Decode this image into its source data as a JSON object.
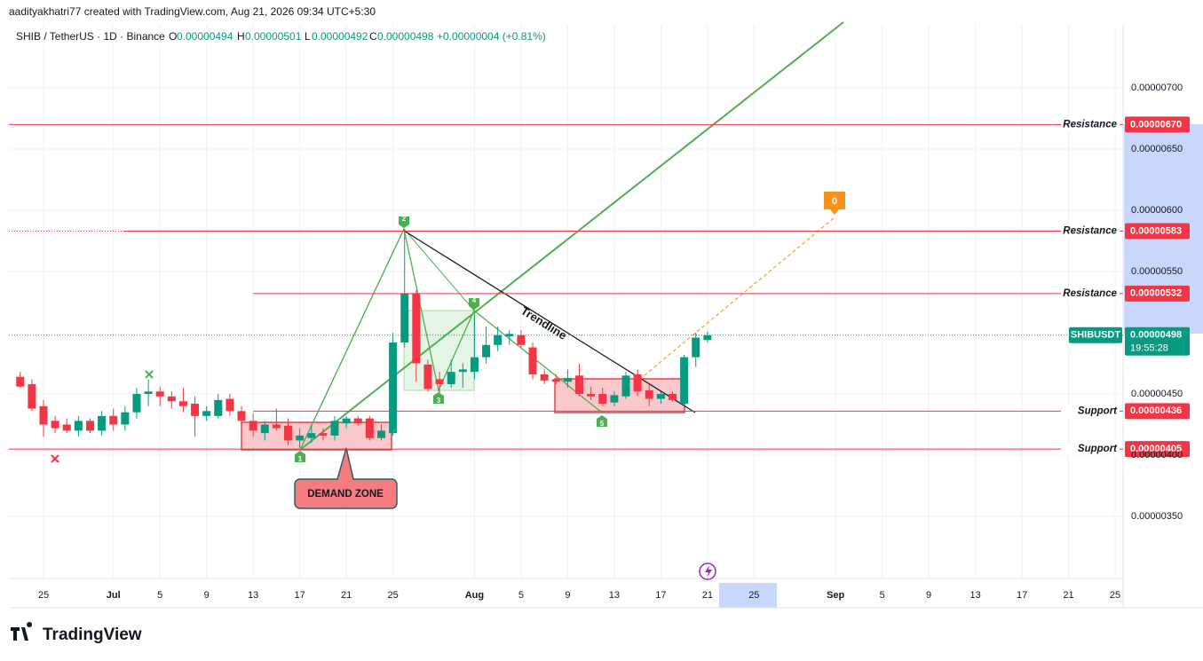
{
  "attribution": "aadityakhatri77 created with TradingView.com, Aug 21, 2026 09:34 UTC+5:30",
  "brand": "TradingView",
  "chart_data": {
    "type": "candlestick",
    "title": "SHIB / TetherUS · 1D · Binance",
    "ohlc_header": {
      "o_key": "O",
      "o": "0.00000494",
      "h_key": "H",
      "h": "0.00000501",
      "l_key": "L",
      "l": "0.00000492",
      "c_key": "C",
      "c": "0.00000498",
      "change": "+0.00000004 (+0.81%)"
    },
    "categories": [
      null,
      null,
      "25",
      null,
      null,
      null,
      null,
      null,
      "Jul",
      null,
      null,
      null,
      "5",
      null,
      null,
      null,
      "9",
      null,
      null,
      null,
      "13",
      null,
      null,
      null,
      "17",
      null,
      null,
      null,
      "21",
      null,
      null,
      null,
      "25",
      null,
      null,
      null,
      null,
      null,
      null,
      "Aug",
      null,
      null,
      null,
      "5",
      null,
      null,
      null,
      "9",
      null,
      null,
      null,
      "13",
      null,
      null,
      null,
      "17",
      null,
      null,
      null,
      "21",
      null,
      null,
      null,
      "25",
      null,
      null,
      null,
      null,
      null,
      null,
      "Sep",
      null,
      null,
      null,
      "5",
      null,
      null,
      null,
      "9",
      null,
      null,
      null,
      "13",
      null,
      null,
      null,
      "17",
      null,
      null,
      null,
      "21",
      null,
      null,
      null,
      "25"
    ],
    "open": [
      4.64e-06,
      4.58e-06,
      4.4e-06,
      4.28e-06,
      4.25e-06,
      4.2e-06,
      4.28e-06,
      4.2e-06,
      4.32e-06,
      4.25e-06,
      4.35e-06,
      4.5e-06,
      4.52e-06,
      4.48e-06,
      4.44e-06,
      4.42e-06,
      4.32e-06,
      4.32e-06,
      4.46e-06,
      4.36e-06,
      4.28e-06,
      4.18e-06,
      4.25e-06,
      4.24e-06,
      4.12e-06,
      4.14e-06,
      4.18e-06,
      4.16e-06,
      4.26e-06,
      4.3e-06,
      4.3e-06,
      4.14e-06,
      4.18e-06,
      4.92e-06,
      5.32e-06,
      4.74e-06,
      4.62e-06,
      4.58e-06,
      4.68e-06,
      4.68e-06,
      4.8e-06,
      4.9e-06,
      4.97e-06,
      4.98e-06,
      4.88e-06,
      4.66e-06,
      4.62e-06,
      4.6e-06,
      4.65e-06,
      4.5e-06,
      4.5e-06,
      4.43e-06,
      4.48e-06,
      4.66e-06,
      4.53e-06,
      4.46e-06,
      4.5e-06,
      4.42e-06,
      4.8e-06,
      4.94e-06,
      null,
      null,
      null,
      null,
      null,
      null,
      null,
      null,
      null,
      null,
      null,
      null,
      null,
      null,
      null,
      null,
      null,
      null,
      null,
      null,
      null,
      null,
      null,
      null,
      null,
      null,
      null,
      null,
      null,
      null,
      null,
      null,
      null,
      null,
      null
    ],
    "high": [
      4.68e-06,
      4.62e-06,
      4.45e-06,
      4.32e-06,
      4.3e-06,
      4.32e-06,
      4.3e-06,
      4.36e-06,
      4.38e-06,
      4.4e-06,
      4.55e-06,
      4.62e-06,
      4.56e-06,
      4.52e-06,
      4.55e-06,
      4.48e-06,
      4.4e-06,
      4.5e-06,
      4.5e-06,
      4.4e-06,
      4.34e-06,
      4.28e-06,
      4.38e-06,
      4.3e-06,
      4.22e-06,
      4.25e-06,
      4.22e-06,
      4.32e-06,
      4.32e-06,
      4.32e-06,
      4.32e-06,
      4.25e-06,
      5e-06,
      5.83e-06,
      5.35e-06,
      4.78e-06,
      4.68e-06,
      4.78e-06,
      4.75e-06,
      5.15e-06,
      5.05e-06,
      5.05e-06,
      5.02e-06,
      5.02e-06,
      4.92e-06,
      4.7e-06,
      4.66e-06,
      4.7e-06,
      4.75e-06,
      4.56e-06,
      4.55e-06,
      4.52e-06,
      4.68e-06,
      4.7e-06,
      4.58e-06,
      4.52e-06,
      4.52e-06,
      4.82e-06,
      5e-06,
      5.01e-06,
      null,
      null,
      null,
      null,
      null,
      null,
      null,
      null,
      null,
      null,
      null,
      null,
      null,
      null,
      null,
      null,
      null,
      null,
      null,
      null,
      null,
      null,
      null,
      null,
      null,
      null,
      null,
      null,
      null,
      null,
      null,
      null,
      null,
      null,
      null
    ],
    "low": [
      4.55e-06,
      4.36e-06,
      4.15e-06,
      4.18e-06,
      4.18e-06,
      4.15e-06,
      4.18e-06,
      4.16e-06,
      4.2e-06,
      4.2e-06,
      4.3e-06,
      4.4e-06,
      4.4e-06,
      4.38e-06,
      4.35e-06,
      4.15e-06,
      4.28e-06,
      4.3e-06,
      4.32e-06,
      4.25e-06,
      4.15e-06,
      4.12e-06,
      4.2e-06,
      4.08e-06,
      4.06e-06,
      4.1e-06,
      4.12e-06,
      4.12e-06,
      4.22e-06,
      4.24e-06,
      4.12e-06,
      4.12e-06,
      4.16e-06,
      4.88e-06,
      4.6e-06,
      4.52e-06,
      4.47e-06,
      4.55e-06,
      4.55e-06,
      4.62e-06,
      4.75e-06,
      4.85e-06,
      4.9e-06,
      4.88e-06,
      4.62e-06,
      4.58e-06,
      4.58e-06,
      4.55e-06,
      4.48e-06,
      4.45e-06,
      4.4e-06,
      4.4e-06,
      4.46e-06,
      4.48e-06,
      4.4e-06,
      4.42e-06,
      4.44e-06,
      4.4e-06,
      4.72e-06,
      4.92e-06,
      null,
      null,
      null,
      null,
      null,
      null,
      null,
      null,
      null,
      null,
      null,
      null,
      null,
      null,
      null,
      null,
      null,
      null,
      null,
      null,
      null,
      null,
      null,
      null,
      null,
      null,
      null,
      null,
      null,
      null,
      null,
      null,
      null,
      null,
      null
    ],
    "close": [
      4.56e-06,
      4.38e-06,
      4.25e-06,
      4.22e-06,
      4.2e-06,
      4.28e-06,
      4.2e-06,
      4.32e-06,
      4.25e-06,
      4.35e-06,
      4.5e-06,
      4.52e-06,
      4.48e-06,
      4.44e-06,
      4.4e-06,
      4.32e-06,
      4.36e-06,
      4.45e-06,
      4.36e-06,
      4.28e-06,
      4.2e-06,
      4.25e-06,
      4.22e-06,
      4.12e-06,
      4.16e-06,
      4.18e-06,
      4.16e-06,
      4.28e-06,
      4.3e-06,
      4.26e-06,
      4.14e-06,
      4.2e-06,
      4.92e-06,
      5.32e-06,
      4.75e-06,
      4.54e-06,
      4.58e-06,
      4.68e-06,
      4.7e-06,
      4.8e-06,
      4.9e-06,
      4.98e-06,
      4.99e-06,
      4.9e-06,
      4.66e-06,
      4.61e-06,
      4.6e-06,
      4.63e-06,
      4.5e-06,
      4.48e-06,
      4.42e-06,
      4.49e-06,
      4.65e-06,
      4.52e-06,
      4.46e-06,
      4.5e-06,
      4.45e-06,
      4.8e-06,
      4.96e-06,
      4.98e-06,
      null,
      null,
      null,
      null,
      null,
      null,
      null,
      null,
      null,
      null,
      null,
      null,
      null,
      null,
      null,
      null,
      null,
      null,
      null,
      null,
      null,
      null,
      null,
      null,
      null,
      null,
      null,
      null,
      null,
      null,
      null,
      null,
      null,
      null,
      null
    ],
    "up_color": "#089981",
    "down_color": "#f23645",
    "ylim": [
      3e-06,
      7.5e-06
    ],
    "yticks": [
      {
        "value": 7e-06,
        "label": "0.00000700"
      },
      {
        "value": 6.5e-06,
        "label": "0.00000650"
      },
      {
        "value": 6e-06,
        "label": "0.00000600"
      },
      {
        "value": 5.5e-06,
        "label": "0.00000550"
      },
      {
        "value": 4.5e-06,
        "label": "0.00000450"
      },
      {
        "value": 4e-06,
        "label": "0.00000400"
      },
      {
        "value": 3.5e-06,
        "label": "0.00000350"
      }
    ],
    "grid": true,
    "levels": [
      {
        "name": "Resistance",
        "value": 6.7e-06,
        "label": "0.00000670",
        "color": "#f23645"
      },
      {
        "name": "Resistance",
        "value": 5.83e-06,
        "label": "0.00000583",
        "color": "#f23645"
      },
      {
        "name": "Resistance",
        "value": 5.32e-06,
        "label": "0.00000532",
        "color": "#f23645"
      },
      {
        "name": "Support",
        "value": 4.36e-06,
        "label": "0.00000436",
        "color": "#f23645"
      },
      {
        "name": "Support",
        "value": 4.05e-06,
        "label": "0.00000405",
        "color": "#f23645"
      }
    ],
    "last_price": {
      "symbol": "SHIBUSDT",
      "value": 4.98e-06,
      "label": "0.00000498",
      "countdown": "19:55:28"
    },
    "pattern_points": [
      "1",
      "2",
      "3",
      "4",
      "5"
    ],
    "target_label": "0",
    "trendline_label": "Trendline",
    "zone_label": "DEMAND ZONE"
  }
}
